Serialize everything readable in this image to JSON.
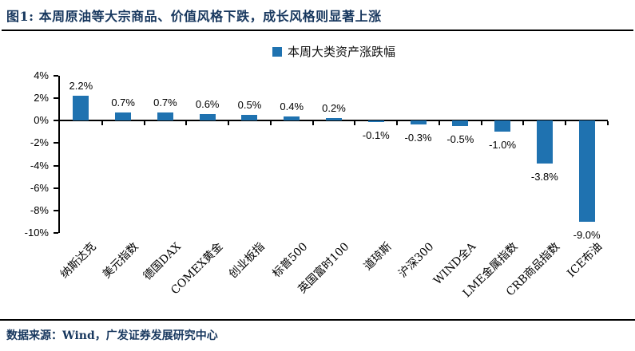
{
  "header": {
    "title": "图1:  本周原油等大宗商品、价值风格下跌，成长风格则显著上涨"
  },
  "footer": {
    "source": "数据来源：Wind，广发证券发展研究中心"
  },
  "colors": {
    "bar": "#1F72B0",
    "title_navy": "#17375E",
    "axis": "#000000"
  },
  "chart_data": {
    "type": "bar",
    "legend": "本周大类资产涨跌幅",
    "legend_position": "top-center",
    "categories": [
      "纳斯达克",
      "美元指数",
      "德国DAX",
      "COMEX黄金",
      "创业板指",
      "标普500",
      "英国富时100",
      "道琼斯",
      "沪深300",
      "WIND全A",
      "LME金属指数",
      "CRB商品指数",
      "ICE布油"
    ],
    "values": [
      2.2,
      0.7,
      0.7,
      0.6,
      0.5,
      0.4,
      0.2,
      -0.1,
      -0.3,
      -0.5,
      -1.0,
      -3.8,
      -9.0
    ],
    "value_labels": [
      "2.2%",
      "0.7%",
      "0.7%",
      "0.6%",
      "0.5%",
      "0.4%",
      "0.2%",
      "-0.1%",
      "-0.3%",
      "-0.5%",
      "-1.0%",
      "-3.8%",
      "-9.0%"
    ],
    "ylim": [
      -10,
      4
    ],
    "ytick_values": [
      4,
      2,
      0,
      -2,
      -4,
      -6,
      -8,
      -10
    ],
    "ytick_labels": [
      "4%",
      "2%",
      "0%",
      "-2%",
      "-4%",
      "-6%",
      "-8%",
      "-10%"
    ],
    "grid": false,
    "bar_color": "#1F72B0",
    "unit": "%"
  }
}
